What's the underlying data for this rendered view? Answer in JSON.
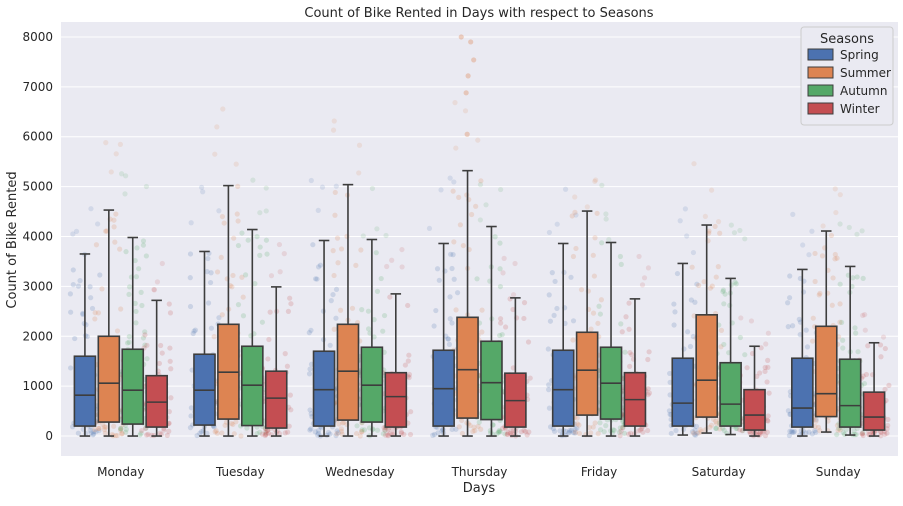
{
  "chart_data": {
    "type": "box",
    "title": "Count of Bike Rented in Days with respect to Seasons",
    "xlabel": "Days",
    "ylabel": "Count of Bike Rented",
    "ylim": [
      -400,
      8300
    ],
    "yticks": [
      0,
      1000,
      2000,
      3000,
      4000,
      5000,
      6000,
      7000,
      8000
    ],
    "categories": [
      "Monday",
      "Tuesday",
      "Wednesday",
      "Thursday",
      "Friday",
      "Saturday",
      "Sunday"
    ],
    "grid": true,
    "overlay": "strip points",
    "legend": {
      "title": "Seasons",
      "position": "top-right"
    },
    "series": [
      {
        "name": "Spring",
        "color": "#4c72b0",
        "boxes": [
          {
            "whisker_low": 0,
            "q1": 200,
            "median": 820,
            "q3": 1600,
            "whisker_high": 3650
          },
          {
            "whisker_low": 0,
            "q1": 220,
            "median": 920,
            "q3": 1640,
            "whisker_high": 3700
          },
          {
            "whisker_low": 0,
            "q1": 200,
            "median": 930,
            "q3": 1700,
            "whisker_high": 3920
          },
          {
            "whisker_low": 0,
            "q1": 200,
            "median": 950,
            "q3": 1720,
            "whisker_high": 3860
          },
          {
            "whisker_low": 0,
            "q1": 200,
            "median": 930,
            "q3": 1720,
            "whisker_high": 3860
          },
          {
            "whisker_low": 20,
            "q1": 200,
            "median": 660,
            "q3": 1560,
            "whisker_high": 3460
          },
          {
            "whisker_low": 0,
            "q1": 180,
            "median": 560,
            "q3": 1560,
            "whisker_high": 3340
          }
        ]
      },
      {
        "name": "Summer",
        "color": "#dd8452",
        "boxes": [
          {
            "whisker_low": 0,
            "q1": 280,
            "median": 1060,
            "q3": 2000,
            "whisker_high": 4530
          },
          {
            "whisker_low": 0,
            "q1": 340,
            "median": 1280,
            "q3": 2240,
            "whisker_high": 5020
          },
          {
            "whisker_low": 0,
            "q1": 320,
            "median": 1300,
            "q3": 2240,
            "whisker_high": 5040
          },
          {
            "whisker_low": 0,
            "q1": 360,
            "median": 1330,
            "q3": 2380,
            "whisker_high": 5320
          },
          {
            "whisker_low": 0,
            "q1": 420,
            "median": 1320,
            "q3": 2080,
            "whisker_high": 4510
          },
          {
            "whisker_low": 60,
            "q1": 380,
            "median": 1120,
            "q3": 2430,
            "whisker_high": 4230
          },
          {
            "whisker_low": 80,
            "q1": 390,
            "median": 850,
            "q3": 2200,
            "whisker_high": 4110
          }
        ]
      },
      {
        "name": "Autumn",
        "color": "#55a868",
        "boxes": [
          {
            "whisker_low": 0,
            "q1": 240,
            "median": 920,
            "q3": 1740,
            "whisker_high": 3980
          },
          {
            "whisker_low": 0,
            "q1": 210,
            "median": 1020,
            "q3": 1800,
            "whisker_high": 4140
          },
          {
            "whisker_low": 0,
            "q1": 280,
            "median": 1020,
            "q3": 1780,
            "whisker_high": 3940
          },
          {
            "whisker_low": 0,
            "q1": 330,
            "median": 1070,
            "q3": 1900,
            "whisker_high": 4200
          },
          {
            "whisker_low": 0,
            "q1": 340,
            "median": 1060,
            "q3": 1780,
            "whisker_high": 3880
          },
          {
            "whisker_low": 30,
            "q1": 200,
            "median": 640,
            "q3": 1470,
            "whisker_high": 3160
          },
          {
            "whisker_low": 20,
            "q1": 180,
            "median": 610,
            "q3": 1540,
            "whisker_high": 3400
          }
        ]
      },
      {
        "name": "Winter",
        "color": "#c44e52",
        "boxes": [
          {
            "whisker_low": 0,
            "q1": 180,
            "median": 680,
            "q3": 1210,
            "whisker_high": 2720
          },
          {
            "whisker_low": 0,
            "q1": 160,
            "median": 760,
            "q3": 1300,
            "whisker_high": 2990
          },
          {
            "whisker_low": 0,
            "q1": 180,
            "median": 790,
            "q3": 1270,
            "whisker_high": 2850
          },
          {
            "whisker_low": 0,
            "q1": 180,
            "median": 710,
            "q3": 1260,
            "whisker_high": 2770
          },
          {
            "whisker_low": 0,
            "q1": 200,
            "median": 730,
            "q3": 1270,
            "whisker_high": 2750
          },
          {
            "whisker_low": 0,
            "q1": 120,
            "median": 420,
            "q3": 930,
            "whisker_high": 1800
          },
          {
            "whisker_low": 0,
            "q1": 120,
            "median": 380,
            "q3": 880,
            "whisker_high": 1870
          }
        ]
      }
    ],
    "outliers": [
      {
        "category": "Thursday",
        "series": "Summer",
        "y": 6050
      },
      {
        "category": "Thursday",
        "series": "Summer",
        "y": 6880
      },
      {
        "category": "Thursday",
        "series": "Summer",
        "y": 7220
      },
      {
        "category": "Thursday",
        "series": "Summer",
        "y": 7540
      },
      {
        "category": "Thursday",
        "series": "Summer",
        "y": 7900
      },
      {
        "category": "Thursday",
        "series": "Summer",
        "y": 8000
      }
    ]
  }
}
